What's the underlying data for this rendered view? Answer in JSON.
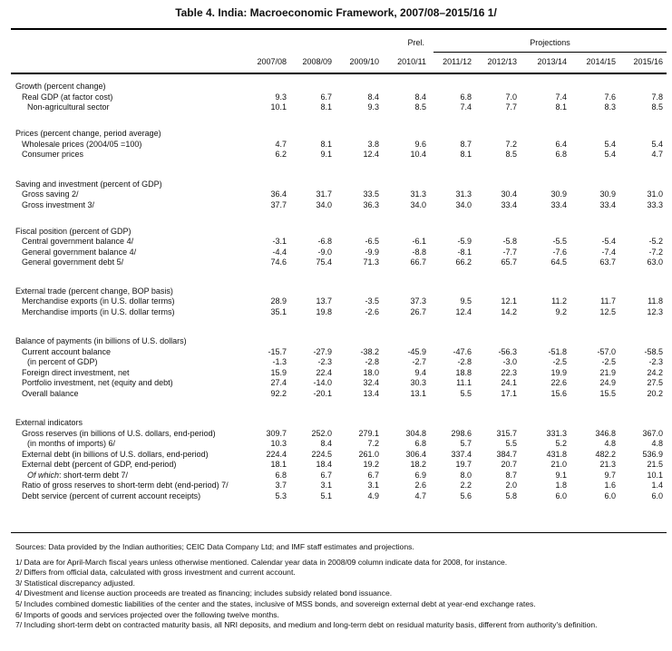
{
  "title": "Table 4. India: Macroeconomic Framework, 2007/08–2015/16 1/",
  "header": {
    "prel": "Prel.",
    "projections": "Projections",
    "years": [
      "2007/08",
      "2008/09",
      "2009/10",
      "2010/11",
      "2011/12",
      "2012/13",
      "2013/14",
      "2014/15",
      "2015/16"
    ]
  },
  "sections": [
    {
      "heading": "Growth (percent change)",
      "rows": [
        {
          "label": "Real GDP (at factor cost)",
          "level": 1,
          "values": [
            "9.3",
            "6.7",
            "8.4",
            "8.4",
            "6.8",
            "7.0",
            "7.4",
            "7.6",
            "7.8"
          ]
        },
        {
          "label": "Non-agricultural sector",
          "level": 2,
          "values": [
            "10.1",
            "8.1",
            "9.3",
            "8.5",
            "7.4",
            "7.7",
            "8.1",
            "8.3",
            "8.5"
          ]
        }
      ]
    },
    {
      "heading": "Prices (percent change, period average)",
      "rows": [
        {
          "label": "Wholesale prices (2004/05 =100)",
          "level": 1,
          "values": [
            "4.7",
            "8.1",
            "3.8",
            "9.6",
            "8.7",
            "7.2",
            "6.4",
            "5.4",
            "5.4"
          ]
        },
        {
          "label": "Consumer prices",
          "level": 1,
          "values": [
            "6.2",
            "9.1",
            "12.4",
            "10.4",
            "8.1",
            "8.5",
            "6.8",
            "5.4",
            "4.7"
          ]
        }
      ]
    },
    {
      "heading": "Saving and investment (percent of GDP)",
      "rows": [
        {
          "label": "Gross saving 2/",
          "level": 1,
          "values": [
            "36.4",
            "31.7",
            "33.5",
            "31.3",
            "31.3",
            "30.4",
            "30.9",
            "30.9",
            "31.0"
          ]
        },
        {
          "label": "Gross investment 3/",
          "level": 1,
          "values": [
            "37.7",
            "34.0",
            "36.3",
            "34.0",
            "34.0",
            "33.4",
            "33.4",
            "33.4",
            "33.3"
          ]
        }
      ]
    },
    {
      "heading": "Fiscal position (percent of GDP)",
      "rows": [
        {
          "label": "Central government balance 4/",
          "level": 1,
          "values": [
            "-3.1",
            "-6.8",
            "-6.5",
            "-6.1",
            "-5.9",
            "-5.8",
            "-5.5",
            "-5.4",
            "-5.2"
          ]
        },
        {
          "label": "General government balance 4/",
          "level": 1,
          "values": [
            "-4.4",
            "-9.0",
            "-9.9",
            "-8.8",
            "-8.1",
            "-7.7",
            "-7.6",
            "-7.4",
            "-7.2"
          ]
        },
        {
          "label": "General government debt 5/",
          "level": 1,
          "values": [
            "74.6",
            "75.4",
            "71.3",
            "66.7",
            "66.2",
            "65.7",
            "64.5",
            "63.7",
            "63.0"
          ]
        }
      ]
    },
    {
      "heading": "External trade (percent change, BOP basis)",
      "rows": [
        {
          "label": "Merchandise exports (in U.S. dollar terms)",
          "level": 1,
          "values": [
            "28.9",
            "13.7",
            "-3.5",
            "37.3",
            "9.5",
            "12.1",
            "11.2",
            "11.7",
            "11.8"
          ]
        },
        {
          "label": "Merchandise imports (in U.S. dollar terms)",
          "level": 1,
          "values": [
            "35.1",
            "19.8",
            "-2.6",
            "26.7",
            "12.4",
            "14.2",
            "9.2",
            "12.5",
            "12.3"
          ]
        }
      ]
    },
    {
      "heading": "Balance of payments (in billions of U.S. dollars)",
      "rows": [
        {
          "label": "Current account balance",
          "level": 1,
          "values": [
            "-15.7",
            "-27.9",
            "-38.2",
            "-45.9",
            "-47.6",
            "-56.3",
            "-51.8",
            "-57.0",
            "-58.5"
          ]
        },
        {
          "label": "(in percent of GDP)",
          "level": 2,
          "values": [
            "-1.3",
            "-2.3",
            "-2.8",
            "-2.7",
            "-2.8",
            "-3.0",
            "-2.5",
            "-2.5",
            "-2.3"
          ]
        },
        {
          "label": "Foreign direct investment, net",
          "level": 1,
          "values": [
            "15.9",
            "22.4",
            "18.0",
            "9.4",
            "18.8",
            "22.3",
            "19.9",
            "21.9",
            "24.2"
          ]
        },
        {
          "label": "Portfolio investment, net (equity and debt)",
          "level": 1,
          "values": [
            "27.4",
            "-14.0",
            "32.4",
            "30.3",
            "11.1",
            "24.1",
            "22.6",
            "24.9",
            "27.5"
          ]
        },
        {
          "label": "Overall balance",
          "level": 1,
          "values": [
            "92.2",
            "-20.1",
            "13.4",
            "13.1",
            "5.5",
            "17.1",
            "15.6",
            "15.5",
            "20.2"
          ]
        }
      ]
    },
    {
      "heading": "External indicators",
      "rows": [
        {
          "label": "Gross reserves (in billions of U.S. dollars, end-period)",
          "level": 1,
          "values": [
            "309.7",
            "252.0",
            "279.1",
            "304.8",
            "298.6",
            "315.7",
            "331.3",
            "346.8",
            "367.0"
          ]
        },
        {
          "label": "(in months of imports) 6/",
          "level": 2,
          "values": [
            "10.3",
            "8.4",
            "7.2",
            "6.8",
            "5.7",
            "5.5",
            "5.2",
            "4.8",
            "4.8"
          ]
        },
        {
          "label": "External debt (in billions of U.S. dollars, end-period)",
          "level": 1,
          "values": [
            "224.4",
            "224.5",
            "261.0",
            "306.4",
            "337.4",
            "384.7",
            "431.8",
            "482.2",
            "536.9"
          ]
        },
        {
          "label": "External debt (percent of GDP, end-period)",
          "level": 1,
          "values": [
            "18.1",
            "18.4",
            "19.2",
            "18.2",
            "19.7",
            "20.7",
            "21.0",
            "21.3",
            "21.5"
          ]
        },
        {
          "label_italic": "Of which",
          "label": ": short-term debt 7/",
          "level": 2,
          "values": [
            "6.8",
            "6.7",
            "6.7",
            "6.9",
            "8.0",
            "8.7",
            "9.1",
            "9.7",
            "10.1"
          ]
        },
        {
          "label": "Ratio of gross reserves to short-term debt (end-period) 7/",
          "level": 1,
          "values": [
            "3.7",
            "3.1",
            "3.1",
            "2.6",
            "2.2",
            "2.0",
            "1.8",
            "1.6",
            "1.4"
          ]
        },
        {
          "label": "Debt service (percent of current account receipts)",
          "level": 1,
          "values": [
            "5.3",
            "5.1",
            "4.9",
            "4.7",
            "5.6",
            "5.8",
            "6.0",
            "6.0",
            "6.0"
          ]
        }
      ]
    }
  ],
  "notes": {
    "sources": "Sources: Data provided by the Indian authorities; CEIC Data Company Ltd; and IMF staff estimates and projections.",
    "footnotes": [
      "1/ Data are for April-March fiscal years unless otherwise mentioned.  Calendar year data in 2008/09 column indicate data for 2008, for instance.",
      "2/ Differs from official data, calculated with gross investment and current account.",
      "3/ Statistical discrepancy adjusted.",
      "4/ Divestment and license auction proceeds are treated as financing; includes subsidy related bond issuance.",
      "5/ Includes combined domestic liabilities of the center and the states, inclusive of MSS bonds, and sovereign external debt at year-end exchange rates.",
      "6/ Imports of goods and services projected over the following twelve months.",
      "7/ Including short-term debt on contracted maturity basis, all NRI deposits, and medium and long-term debt on residual maturity basis, different from authority's definition."
    ]
  }
}
